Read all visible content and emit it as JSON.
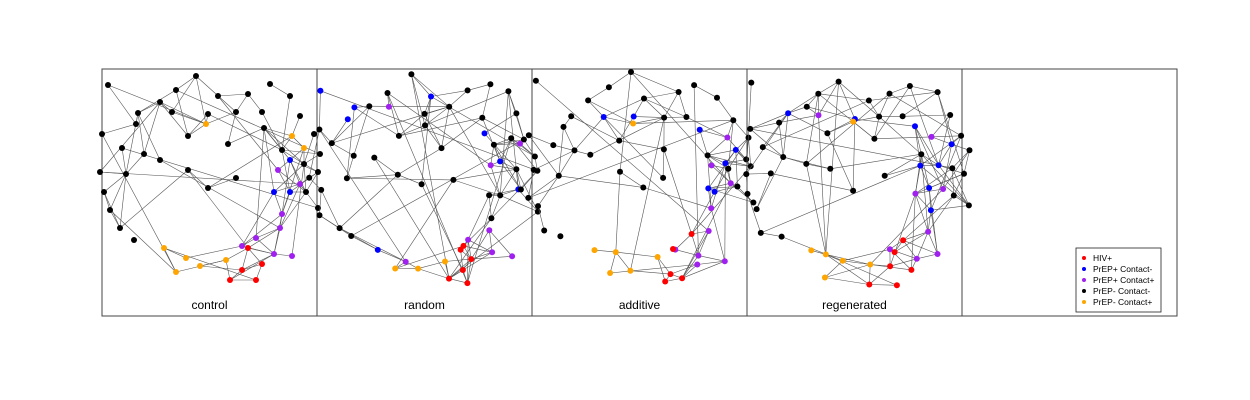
{
  "figure": {
    "panels": [
      {
        "label": "control"
      },
      {
        "label": "random"
      },
      {
        "label": "additive"
      },
      {
        "label": "regenerated"
      }
    ],
    "legend": {
      "entries": [
        {
          "label": "HIV+",
          "color": "#ff0000"
        },
        {
          "label": "PrEP+ Contact-",
          "color": "#0000ff"
        },
        {
          "label": "PrEP+ Contact+",
          "color": "#a020f0"
        },
        {
          "label": "PrEP- Contact-",
          "color": "#000000"
        },
        {
          "label": "PrEP- Contact+",
          "color": "#ffa500"
        }
      ]
    },
    "edge_color": "#555555"
  }
}
